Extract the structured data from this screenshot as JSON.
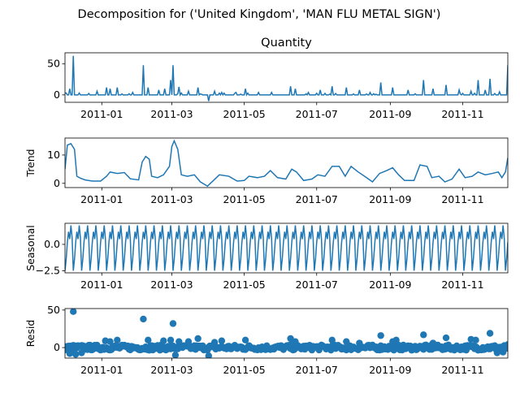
{
  "figure": {
    "suptitle": "Decomposition for ('United Kingdom', 'MAN FLU METAL SIGN')"
  },
  "chart_data": [
    {
      "type": "line",
      "panel": "observed",
      "title": "Quantity",
      "ylabel": "",
      "ylim": [
        -12,
        68
      ],
      "yticks": [
        0,
        50
      ],
      "ytick_labels": [
        "0",
        "50"
      ],
      "xlim": [
        "2010-12-01",
        "2011-12-09"
      ],
      "xticks": [
        "2011-01-01",
        "2011-03-01",
        "2011-05-01",
        "2011-07-01",
        "2011-09-01",
        "2011-11-01"
      ],
      "xtick_labels": [
        "2011-01",
        "2011-03",
        "2011-05",
        "2011-07",
        "2011-09",
        "2011-11"
      ],
      "color": "#1f77b4",
      "baseline": 0,
      "spikes": [
        {
          "x": "2010-12-02",
          "y": 3
        },
        {
          "x": "2010-12-05",
          "y": 10
        },
        {
          "x": "2010-12-08",
          "y": 63
        },
        {
          "x": "2010-12-13",
          "y": 3
        },
        {
          "x": "2010-12-28",
          "y": 6
        },
        {
          "x": "2011-01-05",
          "y": 12
        },
        {
          "x": "2011-01-08",
          "y": 10
        },
        {
          "x": "2011-01-14",
          "y": 12
        },
        {
          "x": "2011-01-27",
          "y": 4
        },
        {
          "x": "2011-02-05",
          "y": 48
        },
        {
          "x": "2011-02-09",
          "y": 12
        },
        {
          "x": "2011-02-18",
          "y": 8
        },
        {
          "x": "2011-02-23",
          "y": 10
        },
        {
          "x": "2011-02-28",
          "y": 24
        },
        {
          "x": "2011-03-02",
          "y": 48
        },
        {
          "x": "2011-03-07",
          "y": 13
        },
        {
          "x": "2011-03-15",
          "y": 6
        },
        {
          "x": "2011-03-23",
          "y": 12
        },
        {
          "x": "2011-04-01",
          "y": -10
        },
        {
          "x": "2011-04-06",
          "y": 6
        },
        {
          "x": "2011-04-12",
          "y": 4
        },
        {
          "x": "2011-04-24",
          "y": 4
        },
        {
          "x": "2011-05-02",
          "y": 10
        },
        {
          "x": "2011-05-13",
          "y": 4
        },
        {
          "x": "2011-05-24",
          "y": 4
        },
        {
          "x": "2011-06-09",
          "y": 14
        },
        {
          "x": "2011-06-13",
          "y": 10
        },
        {
          "x": "2011-06-24",
          "y": 4
        },
        {
          "x": "2011-07-04",
          "y": 8
        },
        {
          "x": "2011-07-14",
          "y": 14
        },
        {
          "x": "2011-07-26",
          "y": 12
        },
        {
          "x": "2011-08-06",
          "y": 8
        },
        {
          "x": "2011-08-15",
          "y": 4
        },
        {
          "x": "2011-08-24",
          "y": 20
        },
        {
          "x": "2011-09-03",
          "y": 12
        },
        {
          "x": "2011-09-16",
          "y": 8
        },
        {
          "x": "2011-09-29",
          "y": 24
        },
        {
          "x": "2011-10-07",
          "y": 10
        },
        {
          "x": "2011-10-18",
          "y": 16
        },
        {
          "x": "2011-10-29",
          "y": 8
        },
        {
          "x": "2011-11-08",
          "y": 6
        },
        {
          "x": "2011-11-14",
          "y": 24
        },
        {
          "x": "2011-11-20",
          "y": 8
        },
        {
          "x": "2011-11-24",
          "y": 26
        },
        {
          "x": "2011-12-02",
          "y": 5
        },
        {
          "x": "2011-12-09",
          "y": 48
        }
      ]
    },
    {
      "type": "line",
      "panel": "trend",
      "title": "",
      "ylabel": "Trend",
      "ylim": [
        -1.5,
        16
      ],
      "yticks": [
        0,
        10
      ],
      "ytick_labels": [
        "0",
        "10"
      ],
      "xlim": [
        "2010-12-01",
        "2011-12-09"
      ],
      "xticks": [
        "2011-01-01",
        "2011-03-01",
        "2011-05-01",
        "2011-07-01",
        "2011-09-01",
        "2011-11-01"
      ],
      "xtick_labels": [
        "2011-01",
        "2011-03",
        "2011-05",
        "2011-07",
        "2011-09",
        "2011-11"
      ],
      "color": "#1f77b4",
      "points": [
        {
          "x": "2010-12-01",
          "y": 5
        },
        {
          "x": "2010-12-03",
          "y": 13.5
        },
        {
          "x": "2010-12-06",
          "y": 14
        },
        {
          "x": "2010-12-09",
          "y": 12
        },
        {
          "x": "2010-12-11",
          "y": 2.5
        },
        {
          "x": "2010-12-14",
          "y": 1.8
        },
        {
          "x": "2010-12-18",
          "y": 1.2
        },
        {
          "x": "2010-12-24",
          "y": 0.8
        },
        {
          "x": "2010-12-31",
          "y": 0.8
        },
        {
          "x": "2011-01-05",
          "y": 2.5
        },
        {
          "x": "2011-01-08",
          "y": 4
        },
        {
          "x": "2011-01-14",
          "y": 3.5
        },
        {
          "x": "2011-01-20",
          "y": 3.8
        },
        {
          "x": "2011-01-25",
          "y": 1.6
        },
        {
          "x": "2011-02-01",
          "y": 1.2
        },
        {
          "x": "2011-02-04",
          "y": 7.5
        },
        {
          "x": "2011-02-07",
          "y": 9.5
        },
        {
          "x": "2011-02-10",
          "y": 8.5
        },
        {
          "x": "2011-02-12",
          "y": 2.5
        },
        {
          "x": "2011-02-17",
          "y": 2
        },
        {
          "x": "2011-02-22",
          "y": 3
        },
        {
          "x": "2011-02-27",
          "y": 6
        },
        {
          "x": "2011-03-01",
          "y": 13
        },
        {
          "x": "2011-03-03",
          "y": 15
        },
        {
          "x": "2011-03-06",
          "y": 12
        },
        {
          "x": "2011-03-09",
          "y": 3
        },
        {
          "x": "2011-03-14",
          "y": 2.5
        },
        {
          "x": "2011-03-20",
          "y": 3
        },
        {
          "x": "2011-03-25",
          "y": 0.5
        },
        {
          "x": "2011-03-31",
          "y": -1
        },
        {
          "x": "2011-04-05",
          "y": 1
        },
        {
          "x": "2011-04-10",
          "y": 3
        },
        {
          "x": "2011-04-18",
          "y": 2.5
        },
        {
          "x": "2011-04-25",
          "y": 0.8
        },
        {
          "x": "2011-05-01",
          "y": 1
        },
        {
          "x": "2011-05-05",
          "y": 2.5
        },
        {
          "x": "2011-05-12",
          "y": 2
        },
        {
          "x": "2011-05-18",
          "y": 2.5
        },
        {
          "x": "2011-05-23",
          "y": 4.5
        },
        {
          "x": "2011-05-29",
          "y": 2
        },
        {
          "x": "2011-06-05",
          "y": 1.5
        },
        {
          "x": "2011-06-10",
          "y": 5
        },
        {
          "x": "2011-06-14",
          "y": 4
        },
        {
          "x": "2011-06-20",
          "y": 1
        },
        {
          "x": "2011-06-27",
          "y": 1.5
        },
        {
          "x": "2011-07-02",
          "y": 3
        },
        {
          "x": "2011-07-08",
          "y": 2.5
        },
        {
          "x": "2011-07-14",
          "y": 6
        },
        {
          "x": "2011-07-20",
          "y": 6
        },
        {
          "x": "2011-07-25",
          "y": 2.5
        },
        {
          "x": "2011-07-30",
          "y": 6
        },
        {
          "x": "2011-08-05",
          "y": 4
        },
        {
          "x": "2011-08-12",
          "y": 2
        },
        {
          "x": "2011-08-17",
          "y": 0.5
        },
        {
          "x": "2011-08-23",
          "y": 3.5
        },
        {
          "x": "2011-08-29",
          "y": 4.5
        },
        {
          "x": "2011-09-03",
          "y": 5.5
        },
        {
          "x": "2011-09-08",
          "y": 3
        },
        {
          "x": "2011-09-13",
          "y": 1
        },
        {
          "x": "2011-09-21",
          "y": 1
        },
        {
          "x": "2011-09-26",
          "y": 6.5
        },
        {
          "x": "2011-10-02",
          "y": 6
        },
        {
          "x": "2011-10-06",
          "y": 2
        },
        {
          "x": "2011-10-12",
          "y": 2.5
        },
        {
          "x": "2011-10-17",
          "y": 0.5
        },
        {
          "x": "2011-10-23",
          "y": 1.5
        },
        {
          "x": "2011-10-29",
          "y": 5
        },
        {
          "x": "2011-11-03",
          "y": 2
        },
        {
          "x": "2011-11-09",
          "y": 2.5
        },
        {
          "x": "2011-11-14",
          "y": 4
        },
        {
          "x": "2011-11-20",
          "y": 3
        },
        {
          "x": "2011-11-26",
          "y": 3.5
        },
        {
          "x": "2011-12-01",
          "y": 4
        },
        {
          "x": "2011-12-04",
          "y": 2
        },
        {
          "x": "2011-12-07",
          "y": 4
        },
        {
          "x": "2011-12-09",
          "y": 9
        }
      ]
    },
    {
      "type": "line",
      "panel": "seasonal",
      "title": "",
      "ylabel": "Seasonal",
      "ylim": [
        -2.7,
        2.0
      ],
      "yticks": [
        -2.5,
        0.0
      ],
      "ytick_labels": [
        "−2.5",
        "0.0"
      ],
      "xlim": [
        "2010-12-01",
        "2011-12-09"
      ],
      "xticks": [
        "2011-01-01",
        "2011-03-01",
        "2011-05-01",
        "2011-07-01",
        "2011-09-01",
        "2011-11-01"
      ],
      "xtick_labels": [
        "2011-01",
        "2011-03",
        "2011-05",
        "2011-07",
        "2011-09",
        "2011-11"
      ],
      "color": "#1f77b4",
      "start": "2010-12-01",
      "cycle": [
        -2.5,
        -1.4,
        0.2,
        1.2,
        0.5,
        1.8,
        0.6
      ],
      "end": "2011-12-09"
    },
    {
      "type": "scatter",
      "panel": "resid",
      "title": "",
      "ylabel": "Resid",
      "ylim": [
        -14,
        52
      ],
      "yticks": [
        0,
        50
      ],
      "ytick_labels": [
        "0",
        "50"
      ],
      "xlim": [
        "2010-12-01",
        "2011-12-09"
      ],
      "xticks": [
        "2011-01-01",
        "2011-03-01",
        "2011-05-01",
        "2011-07-01",
        "2011-09-01",
        "2011-11-01"
      ],
      "xtick_labels": [
        "2011-01",
        "2011-03",
        "2011-05",
        "2011-07",
        "2011-09",
        "2011-11"
      ],
      "color": "#1f77b4",
      "baseline": 0,
      "outliers": [
        {
          "x": "2010-12-08",
          "y": 48
        },
        {
          "x": "2010-12-05",
          "y": -8
        },
        {
          "x": "2010-12-10",
          "y": -9
        },
        {
          "x": "2010-12-15",
          "y": -7
        },
        {
          "x": "2011-01-04",
          "y": 9
        },
        {
          "x": "2011-01-08",
          "y": 8
        },
        {
          "x": "2011-01-14",
          "y": 10
        },
        {
          "x": "2011-02-05",
          "y": 38
        },
        {
          "x": "2011-02-09",
          "y": 10
        },
        {
          "x": "2011-02-22",
          "y": 9
        },
        {
          "x": "2011-02-28",
          "y": 10
        },
        {
          "x": "2011-03-02",
          "y": 32
        },
        {
          "x": "2011-03-04",
          "y": -10
        },
        {
          "x": "2011-03-07",
          "y": 8
        },
        {
          "x": "2011-03-15",
          "y": 8
        },
        {
          "x": "2011-03-23",
          "y": 12
        },
        {
          "x": "2011-04-01",
          "y": -11
        },
        {
          "x": "2011-04-06",
          "y": 7
        },
        {
          "x": "2011-04-12",
          "y": 9
        },
        {
          "x": "2011-05-02",
          "y": 10
        },
        {
          "x": "2011-06-09",
          "y": 12
        },
        {
          "x": "2011-06-13",
          "y": 8
        },
        {
          "x": "2011-07-14",
          "y": 10
        },
        {
          "x": "2011-07-26",
          "y": 8
        },
        {
          "x": "2011-08-06",
          "y": 6
        },
        {
          "x": "2011-08-24",
          "y": 16
        },
        {
          "x": "2011-09-03",
          "y": 8
        },
        {
          "x": "2011-09-06",
          "y": 10
        },
        {
          "x": "2011-09-29",
          "y": 17
        },
        {
          "x": "2011-10-07",
          "y": 6
        },
        {
          "x": "2011-10-18",
          "y": 13
        },
        {
          "x": "2011-11-08",
          "y": 11
        },
        {
          "x": "2011-11-12",
          "y": 10
        },
        {
          "x": "2011-11-24",
          "y": 19
        },
        {
          "x": "2011-11-30",
          "y": -7
        },
        {
          "x": "2011-12-05",
          "y": -6
        },
        {
          "x": "2011-12-09",
          "y": 4
        }
      ]
    }
  ]
}
